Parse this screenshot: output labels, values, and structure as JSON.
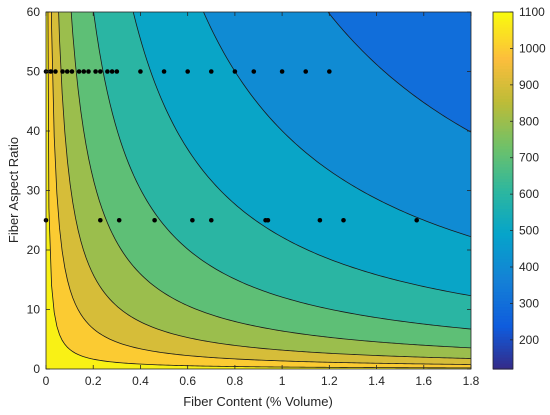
{
  "chart_data": {
    "type": "contour",
    "xlabel": "Fiber Content (% Volume)",
    "ylabel": "Fiber Aspect Ratio",
    "xlim": [
      0,
      1.8
    ],
    "ylim": [
      0,
      60
    ],
    "x_ticks": [
      "0",
      "0.2",
      "0.4",
      "0.6",
      "0.8",
      "1",
      "1.2",
      "1.4",
      "1.6",
      "1.8"
    ],
    "y_ticks": [
      "0",
      "10",
      "20",
      "30",
      "40",
      "50",
      "60"
    ],
    "colorbar": {
      "range": [
        120,
        1100
      ],
      "ticks": [
        "200",
        "300",
        "400",
        "500",
        "600",
        "700",
        "800",
        "900",
        "1000",
        "1100"
      ],
      "colormap": "parula"
    },
    "contour_levels": [
      1050,
      950,
      850,
      750,
      650,
      550,
      450,
      350,
      250
    ],
    "grid": false,
    "scatter": {
      "color": "#000000",
      "points": [
        [
          0.0,
          50
        ],
        [
          0.02,
          50
        ],
        [
          0.04,
          50
        ],
        [
          0.07,
          50
        ],
        [
          0.09,
          50
        ],
        [
          0.11,
          50
        ],
        [
          0.14,
          50
        ],
        [
          0.16,
          50
        ],
        [
          0.18,
          50
        ],
        [
          0.21,
          50
        ],
        [
          0.23,
          50
        ],
        [
          0.26,
          50
        ],
        [
          0.28,
          50
        ],
        [
          0.3,
          50
        ],
        [
          0.4,
          50
        ],
        [
          0.5,
          50
        ],
        [
          0.6,
          50
        ],
        [
          0.7,
          50
        ],
        [
          0.8,
          50
        ],
        [
          0.88,
          50
        ],
        [
          1.0,
          50
        ],
        [
          1.1,
          50
        ],
        [
          1.2,
          50
        ],
        [
          0.0,
          25
        ],
        [
          0.23,
          25
        ],
        [
          0.31,
          25
        ],
        [
          0.46,
          25
        ],
        [
          0.62,
          25
        ],
        [
          0.7,
          25
        ],
        [
          0.93,
          25
        ],
        [
          0.94,
          25
        ],
        [
          1.16,
          25
        ],
        [
          1.26,
          25
        ],
        [
          1.57,
          25
        ]
      ]
    }
  }
}
